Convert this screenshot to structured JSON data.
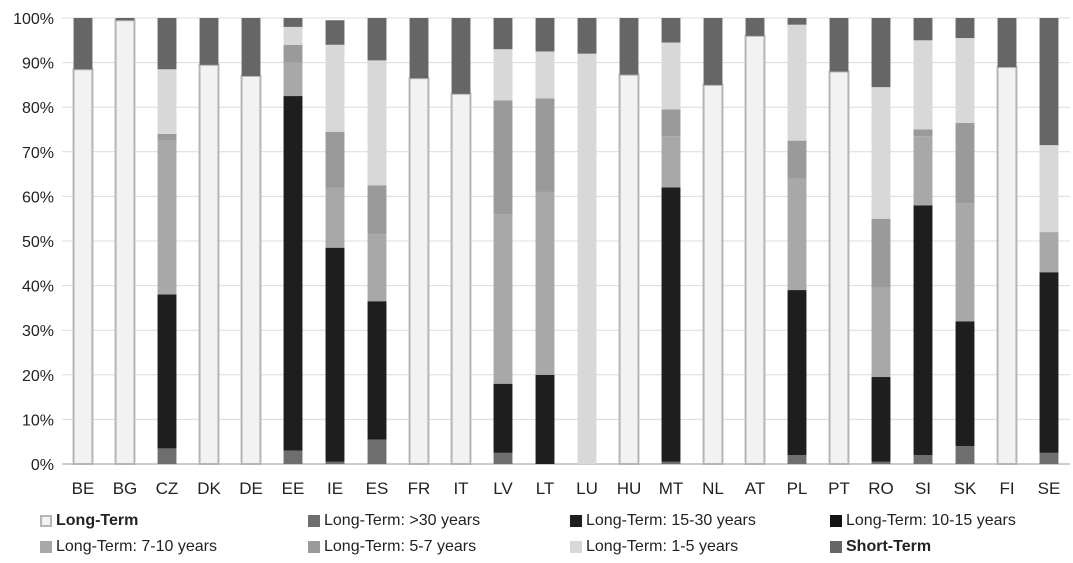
{
  "chart_data": {
    "type": "bar",
    "stacked": true,
    "title": "",
    "xlabel": "",
    "ylabel": "",
    "ylim": [
      0,
      100
    ],
    "yticks": [
      "0%",
      "10%",
      "20%",
      "30%",
      "40%",
      "50%",
      "60%",
      "70%",
      "80%",
      "90%",
      "100%"
    ],
    "legend_position": "bottom",
    "categories": [
      "BE",
      "BG",
      "CZ",
      "DK",
      "DE",
      "EE",
      "IE",
      "ES",
      "FR",
      "IT",
      "LV",
      "LT",
      "LU",
      "HU",
      "MT",
      "NL",
      "AT",
      "PL",
      "PT",
      "RO",
      "SI",
      "SK",
      "FI",
      "SE"
    ],
    "series": [
      {
        "name": "Long-Term",
        "bold": true,
        "color": "#f2f2f2",
        "stroke": "#b5b5b5",
        "values": [
          88.5,
          99.5,
          0,
          89.5,
          87,
          0,
          0,
          0,
          86.5,
          83,
          0,
          0,
          0,
          87.3,
          0,
          85,
          96,
          0,
          88,
          0,
          0,
          0,
          89,
          0
        ]
      },
      {
        "name": "Long-Term: >30 years",
        "bold": false,
        "color": "#6e6e6e",
        "values": [
          0,
          0,
          3.5,
          0,
          0,
          3,
          0.5,
          5.5,
          0,
          0,
          2.5,
          0,
          0,
          0,
          0.5,
          0,
          0,
          2,
          0,
          0.5,
          2,
          4,
          0,
          2.5
        ]
      },
      {
        "name": "Long-Term: 15-30 years",
        "bold": false,
        "color": "#1e1e1e",
        "values": [
          0,
          0,
          34.5,
          0,
          0,
          79.5,
          48,
          31,
          0,
          0,
          15.5,
          20,
          0,
          0,
          61.5,
          0,
          0,
          37,
          0,
          19,
          56,
          28,
          0,
          40.5
        ]
      },
      {
        "name": "Long-Term: 10-15 years",
        "bold": false,
        "color": "#141414",
        "values": [
          0,
          0,
          0,
          0,
          0,
          0,
          0,
          0,
          0,
          0,
          0,
          0,
          0,
          0,
          0,
          0,
          0,
          0,
          0,
          0,
          0,
          0,
          0,
          0
        ]
      },
      {
        "name": "Long-Term: 7-10 years",
        "bold": false,
        "color": "#a8a8a8",
        "values": [
          0,
          0,
          34.5,
          0,
          0,
          7.5,
          13.5,
          15,
          0,
          0,
          38,
          41,
          0,
          0,
          11.5,
          0,
          0,
          25,
          0,
          20,
          15.5,
          26.5,
          0,
          9
        ]
      },
      {
        "name": "Long-Term: 5-7 years",
        "bold": false,
        "color": "#9a9a9a",
        "values": [
          0,
          0,
          1.5,
          0,
          0,
          4,
          12.5,
          11,
          0,
          0,
          25.5,
          21,
          0,
          0,
          6,
          0,
          0,
          8.5,
          0,
          15.5,
          1.5,
          18,
          0,
          0
        ]
      },
      {
        "name": "Long-Term: 1-5 years",
        "bold": false,
        "color": "#d8d8d8",
        "values": [
          0,
          0,
          14.5,
          0,
          0,
          4,
          19.5,
          28,
          0,
          0,
          11.5,
          10.5,
          92,
          0,
          15,
          0,
          0,
          26,
          0,
          29.5,
          20,
          19,
          0,
          19.5
        ]
      },
      {
        "name": "Short-Term",
        "bold": true,
        "color": "#666666",
        "values": [
          11.5,
          0.5,
          11.5,
          10.5,
          13,
          2,
          5.5,
          9.5,
          13.5,
          17,
          7,
          7.5,
          8,
          12.7,
          5.5,
          15,
          4,
          1.5,
          12,
          15.5,
          5,
          4.5,
          11,
          28.5
        ]
      }
    ]
  }
}
